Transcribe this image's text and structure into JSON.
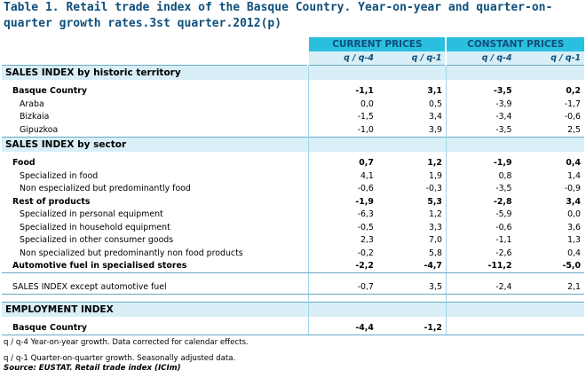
{
  "title": "Table 1. Retail trade index of the Basque Country. Year-on-year and quarter-on-quarter growth rates.3st quarter.2012(p)",
  "headers": {
    "current": "CURRENT PRICES",
    "constant": "CONSTANT PRICES",
    "yoy": "q / q-4",
    "qoq": "q / q-1"
  },
  "sections": {
    "territory": "SALES INDEX by historic territory",
    "sector": "SALES INDEX by sector",
    "employment": "EMPLOYMENT INDEX"
  },
  "rows": {
    "basque": {
      "label": "Basque Country",
      "v": [
        "-1,1",
        "3,1",
        "-3,5",
        "0,2"
      ]
    },
    "araba": {
      "label": "Araba",
      "v": [
        "0,0",
        "0,5",
        "-3,9",
        "-1,7"
      ]
    },
    "bizkaia": {
      "label": "Bizkaia",
      "v": [
        "-1,5",
        "3,4",
        "-3,4",
        "-0,6"
      ]
    },
    "gipuzkoa": {
      "label": "Gipuzkoa",
      "v": [
        "-1,0",
        "3,9",
        "-3,5",
        "2,5"
      ]
    },
    "food": {
      "label": "Food",
      "v": [
        "0,7",
        "1,2",
        "-1,9",
        "0,4"
      ]
    },
    "spec_food": {
      "label": "Specialized in food",
      "v": [
        "4,1",
        "1,9",
        "0,8",
        "1,4"
      ]
    },
    "non_spec_food": {
      "label": "Non especialized but predominantly food",
      "v": [
        "-0,6",
        "-0,3",
        "-3,5",
        "-0,9"
      ]
    },
    "rest": {
      "label": "Rest of products",
      "v": [
        "-1,9",
        "5,3",
        "-2,8",
        "3,4"
      ]
    },
    "personal": {
      "label": "Specialized in personal equipment",
      "v": [
        "-6,3",
        "1,2",
        "-5,9",
        "0,0"
      ]
    },
    "household": {
      "label": "Specialized in household equipment",
      "v": [
        "-0,5",
        "3,3",
        "-0,6",
        "3,6"
      ]
    },
    "other": {
      "label": "Specialized in other consumer goods",
      "v": [
        "2,3",
        "7,0",
        "-1,1",
        "1,3"
      ]
    },
    "non_spec_nonfood": {
      "label": "Non specialized but predominantly non food products",
      "v": [
        "-0,2",
        "5,8",
        "-2,6",
        "0,4"
      ]
    },
    "fuel": {
      "label": "Automotive fuel in specialised stores",
      "v": [
        "-2,2",
        "-4,7",
        "-11,2",
        "-5,0"
      ]
    },
    "except_fuel": {
      "label": "SALES INDEX except automotive fuel",
      "v": [
        "-0,7",
        "3,5",
        "-2,4",
        "2,1"
      ]
    },
    "emp_basque": {
      "label": "Basque Country",
      "v": [
        "-4,4",
        "-1,2",
        "",
        ""
      ]
    }
  },
  "notes": {
    "n1": "q / q-4 Year-on-year growth. Data corrected for calendar effects.",
    "n2": "q / q-1 Quarter-on-quarter growth. Seasonally adjusted data.",
    "source": "Source: EUSTAT. Retail trade index (ICIm)"
  }
}
